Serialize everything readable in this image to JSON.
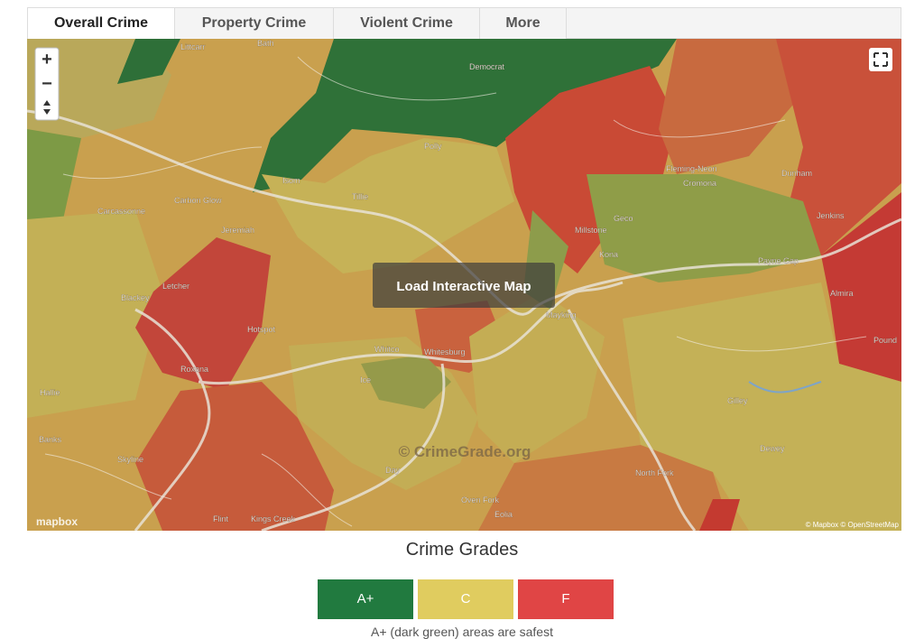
{
  "tabs": [
    "Overall Crime",
    "Property Crime",
    "Violent Crime",
    "More"
  ],
  "map": {
    "zoom_in": "+",
    "zoom_out": "−",
    "button": "Load Interactive Map",
    "watermark": "© CrimeGrade.org",
    "logo": "mapbox",
    "attribution": "© Mapbox © OpenStreetMap",
    "labels": [
      "Littcarr",
      "Bath",
      "Democrat",
      "Polly",
      "Isom",
      "Tillie",
      "Carbon Glow",
      "Carcassonne",
      "Jeremiah",
      "Fleming-Neon",
      "Cromona",
      "Dunham",
      "Jenkins",
      "Geco",
      "Millstone",
      "Kona",
      "Payne Gap",
      "Letcher",
      "Blackey",
      "Hotspot",
      "Mayking",
      "Almira",
      "Pound",
      "Whitco",
      "Whitesburg",
      "Roxana",
      "Ice",
      "Hallie",
      "Gilley",
      "Banks",
      "Dewey",
      "Skyline",
      "Day",
      "North Fork",
      "Oven Fork",
      "Eolia",
      "Flint",
      "Kings Creek"
    ]
  },
  "legend": {
    "title": "Crime Grades",
    "grades": [
      {
        "label": "A+",
        "color": "#217a3f"
      },
      {
        "label": "C",
        "color": "#e0cc5f"
      },
      {
        "label": "F",
        "color": "#e04545"
      }
    ],
    "caption": "A+ (dark green) areas are safest"
  }
}
